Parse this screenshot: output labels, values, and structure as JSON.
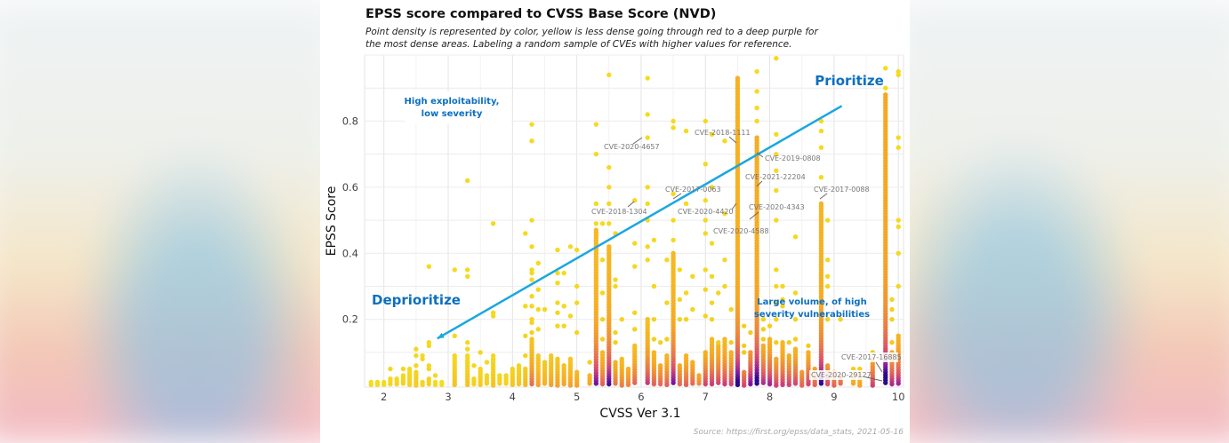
{
  "chart_data": {
    "type": "scatter",
    "title": "EPSS score compared to CVSS Base Score (NVD)",
    "subtitle": [
      "Point density is represented by color, yellow is less dense going through red to a deep purple for",
      "the most dense areas. Labeling a random sample of CVEs with higher values for reference."
    ],
    "xlabel": "CVSS Ver 3.1",
    "ylabel": "EPSS Score",
    "xlim": [
      1.7,
      10.08
    ],
    "ylim": [
      -0.005,
      1.0
    ],
    "x_ticks": [
      2,
      3,
      4,
      5,
      6,
      7,
      8,
      9,
      10
    ],
    "y_ticks": [
      0.2,
      0.4,
      0.6,
      0.8
    ],
    "grid": true,
    "source": "Source: https://first.org/epss/data_stats, 2021-05-16",
    "density_colors": [
      "#f5e51e",
      "#f6a725",
      "#dc4f6a",
      "#8a1aa0",
      "#2b0a8c"
    ],
    "columns": [
      {
        "x": 1.8,
        "stack": 0.01,
        "density": 0.05,
        "points": []
      },
      {
        "x": 1.9,
        "stack": 0.01,
        "density": 0.05,
        "points": []
      },
      {
        "x": 2.0,
        "stack": 0.01,
        "density": 0.05,
        "points": []
      },
      {
        "x": 2.1,
        "stack": 0.02,
        "density": 0.08,
        "points": [
          0.05
        ]
      },
      {
        "x": 2.2,
        "stack": 0.02,
        "density": 0.08,
        "points": []
      },
      {
        "x": 2.3,
        "stack": 0.03,
        "density": 0.1,
        "points": [
          0.05
        ]
      },
      {
        "x": 2.4,
        "stack": 0.05,
        "density": 0.1,
        "points": []
      },
      {
        "x": 2.5,
        "stack": 0.04,
        "density": 0.12,
        "points": [
          0.06,
          0.09,
          0.11
        ]
      },
      {
        "x": 2.6,
        "stack": 0.01,
        "density": 0.08,
        "points": [
          0.08,
          0.09
        ]
      },
      {
        "x": 2.7,
        "stack": 0.02,
        "density": 0.1,
        "points": [
          0.05,
          0.06,
          0.12,
          0.13,
          0.36
        ]
      },
      {
        "x": 2.8,
        "stack": 0.01,
        "density": 0.05,
        "points": [
          0.03
        ]
      },
      {
        "x": 2.9,
        "stack": 0.01,
        "density": 0.05,
        "points": []
      },
      {
        "x": 3.1,
        "stack": 0.09,
        "density": 0.15,
        "points": [
          0.15,
          0.35
        ]
      },
      {
        "x": 3.3,
        "stack": 0.09,
        "density": 0.15,
        "points": [
          0.11,
          0.13,
          0.33,
          0.35,
          0.62
        ]
      },
      {
        "x": 3.4,
        "stack": 0.02,
        "density": 0.1,
        "points": [
          0.06
        ]
      },
      {
        "x": 3.5,
        "stack": 0.05,
        "density": 0.12,
        "points": [
          0.1
        ]
      },
      {
        "x": 3.6,
        "stack": 0.03,
        "density": 0.1,
        "points": [
          0.07
        ]
      },
      {
        "x": 3.7,
        "stack": 0.08,
        "density": 0.15,
        "points": [
          0.09,
          0.21,
          0.22,
          0.49
        ]
      },
      {
        "x": 3.8,
        "stack": 0.03,
        "density": 0.1,
        "points": []
      },
      {
        "x": 3.9,
        "stack": 0.03,
        "density": 0.1,
        "points": []
      },
      {
        "x": 4.0,
        "stack": 0.05,
        "density": 0.15,
        "points": []
      },
      {
        "x": 4.1,
        "stack": 0.06,
        "density": 0.15,
        "points": []
      },
      {
        "x": 4.2,
        "stack": 0.05,
        "density": 0.2,
        "points": [
          0.09,
          0.15,
          0.24,
          0.46
        ]
      },
      {
        "x": 4.3,
        "stack": 0.14,
        "density": 0.45,
        "points": [
          0.16,
          0.19,
          0.2,
          0.24,
          0.27,
          0.32,
          0.34,
          0.35,
          0.42,
          0.5,
          0.74,
          0.79
        ]
      },
      {
        "x": 4.4,
        "stack": 0.09,
        "density": 0.3,
        "points": [
          0.17,
          0.23,
          0.29,
          0.37
        ]
      },
      {
        "x": 4.5,
        "stack": 0.07,
        "density": 0.25,
        "points": [
          0.23
        ]
      },
      {
        "x": 4.6,
        "stack": 0.09,
        "density": 0.3,
        "points": []
      },
      {
        "x": 4.7,
        "stack": 0.08,
        "density": 0.3,
        "points": [
          0.18,
          0.22,
          0.25,
          0.31,
          0.34,
          0.41
        ]
      },
      {
        "x": 4.8,
        "stack": 0.06,
        "density": 0.3,
        "points": [
          0.18,
          0.24,
          0.34
        ]
      },
      {
        "x": 4.9,
        "stack": 0.08,
        "density": 0.3,
        "points": [
          0.21,
          0.42
        ]
      },
      {
        "x": 5.0,
        "stack": 0.04,
        "density": 0.3,
        "points": [
          0.16,
          0.25,
          0.3,
          0.41
        ]
      },
      {
        "x": 5.2,
        "stack": 0.03,
        "density": 0.3,
        "points": [
          0.07
        ]
      },
      {
        "x": 5.3,
        "stack": 0.47,
        "density": 0.7,
        "points": [
          0.49,
          0.55,
          0.7,
          0.79
        ]
      },
      {
        "x": 5.4,
        "stack": 0.1,
        "density": 0.5,
        "points": [
          0.14,
          0.2,
          0.28,
          0.38,
          0.49
        ]
      },
      {
        "x": 5.5,
        "stack": 0.42,
        "density": 0.75,
        "points": [
          0.49,
          0.55,
          0.6,
          0.66,
          0.94
        ]
      },
      {
        "x": 5.6,
        "stack": 0.07,
        "density": 0.45,
        "points": [
          0.13,
          0.16,
          0.3,
          0.32,
          0.46
        ]
      },
      {
        "x": 5.7,
        "stack": 0.08,
        "density": 0.4,
        "points": [
          0.2
        ]
      },
      {
        "x": 5.8,
        "stack": 0.05,
        "density": 0.4,
        "points": []
      },
      {
        "x": 5.9,
        "stack": 0.12,
        "density": 0.5,
        "points": [
          0.17,
          0.22,
          0.36,
          0.43,
          0.56
        ]
      },
      {
        "x": 6.1,
        "stack": 0.2,
        "density": 0.6,
        "points": [
          0.38,
          0.42,
          0.5,
          0.55,
          0.6,
          0.75,
          0.82,
          0.93
        ]
      },
      {
        "x": 6.2,
        "stack": 0.1,
        "density": 0.5,
        "points": [
          0.14,
          0.2,
          0.3,
          0.44
        ]
      },
      {
        "x": 6.3,
        "stack": 0.06,
        "density": 0.5,
        "points": [
          0.13
        ]
      },
      {
        "x": 6.4,
        "stack": 0.09,
        "density": 0.5,
        "points": [
          0.14,
          0.25,
          0.38
        ]
      },
      {
        "x": 6.5,
        "stack": 0.4,
        "density": 0.7,
        "points": [
          0.44,
          0.5,
          0.58,
          0.78,
          0.8
        ]
      },
      {
        "x": 6.6,
        "stack": 0.06,
        "density": 0.5,
        "points": [
          0.2,
          0.26,
          0.35
        ]
      },
      {
        "x": 6.7,
        "stack": 0.09,
        "density": 0.5,
        "points": [
          0.2,
          0.28,
          0.55,
          0.77
        ]
      },
      {
        "x": 6.8,
        "stack": 0.07,
        "density": 0.5,
        "points": [
          0.23,
          0.33
        ]
      },
      {
        "x": 6.9,
        "stack": 0.03,
        "density": 0.4,
        "points": []
      },
      {
        "x": 7.0,
        "stack": 0.1,
        "density": 0.6,
        "points": [
          0.21,
          0.29,
          0.35,
          0.46,
          0.5,
          0.56,
          0.67,
          0.8
        ]
      },
      {
        "x": 7.1,
        "stack": 0.14,
        "density": 0.6,
        "points": [
          0.2,
          0.25,
          0.33,
          0.43,
          0.6,
          0.76
        ]
      },
      {
        "x": 7.2,
        "stack": 0.12,
        "density": 0.6,
        "points": [
          0.13,
          0.28
        ]
      },
      {
        "x": 7.3,
        "stack": 0.14,
        "density": 0.6,
        "points": [
          0.3,
          0.38,
          0.52,
          0.74
        ]
      },
      {
        "x": 7.4,
        "stack": 0.1,
        "density": 0.6,
        "points": [
          0.13,
          0.23
        ]
      },
      {
        "x": 7.5,
        "stack": 0.93,
        "density": 0.85,
        "points": []
      },
      {
        "x": 7.6,
        "stack": 0.04,
        "density": 0.6,
        "points": [
          0.1,
          0.12,
          0.18
        ]
      },
      {
        "x": 7.7,
        "stack": 0.1,
        "density": 0.8,
        "points": [
          0.16
        ]
      },
      {
        "x": 7.8,
        "stack": 0.75,
        "density": 0.9,
        "points": [
          0.8,
          0.84,
          0.89,
          0.95
        ]
      },
      {
        "x": 7.9,
        "stack": 0.12,
        "density": 0.7,
        "points": [
          0.14,
          0.17,
          0.2
        ]
      },
      {
        "x": 8.0,
        "stack": 0.14,
        "density": 0.7,
        "points": [
          0.18
        ]
      },
      {
        "x": 8.1,
        "stack": 0.08,
        "density": 0.6,
        "points": [
          0.13,
          0.2,
          0.25,
          0.3,
          0.35,
          0.5,
          0.59,
          0.65,
          0.7,
          0.76,
          0.99
        ]
      },
      {
        "x": 8.2,
        "stack": 0.13,
        "density": 0.6,
        "points": [
          0.24,
          0.26,
          0.3
        ]
      },
      {
        "x": 8.3,
        "stack": 0.09,
        "density": 0.6,
        "points": [
          0.13
        ]
      },
      {
        "x": 8.4,
        "stack": 0.11,
        "density": 0.6,
        "points": [
          0.14,
          0.2,
          0.28,
          0.45
        ]
      },
      {
        "x": 8.5,
        "stack": 0.04,
        "density": 0.5,
        "points": []
      },
      {
        "x": 8.6,
        "stack": 0.1,
        "density": 0.6,
        "points": [
          0.12
        ]
      },
      {
        "x": 8.7,
        "stack": 0.05,
        "density": 0.5,
        "points": []
      },
      {
        "x": 8.8,
        "stack": 0.55,
        "density": 0.8,
        "points": [
          0.63,
          0.72,
          0.77,
          0.8
        ]
      },
      {
        "x": 8.9,
        "stack": 0.06,
        "density": 0.6,
        "points": [
          0.2,
          0.3,
          0.33,
          0.38,
          0.5
        ]
      },
      {
        "x": 9.0,
        "stack": 0.04,
        "density": 0.5,
        "points": []
      },
      {
        "x": 9.1,
        "stack": 0.03,
        "density": 0.5,
        "points": [
          0.2
        ]
      },
      {
        "x": 9.3,
        "stack": 0.03,
        "density": 0.3,
        "points": [
          0.05
        ]
      },
      {
        "x": 9.4,
        "stack": 0.04,
        "density": 0.3,
        "points": [
          0.05
        ]
      },
      {
        "x": 9.6,
        "stack": 0.08,
        "density": 0.6,
        "points": [
          0.1
        ]
      },
      {
        "x": 9.8,
        "stack": 0.88,
        "density": 1.0,
        "points": [
          0.9,
          0.96
        ]
      },
      {
        "x": 9.9,
        "stack": 0.1,
        "density": 0.7,
        "points": [
          0.13,
          0.2,
          0.23,
          0.26
        ]
      },
      {
        "x": 10.0,
        "stack": 0.15,
        "density": 0.7,
        "points": [
          0.3,
          0.4,
          0.48,
          0.5,
          0.72,
          0.75,
          0.94,
          0.95
        ]
      }
    ],
    "labeled_cves": [
      {
        "label": "CVE-2020-4657",
        "x": 6.1,
        "y": 0.75
      },
      {
        "label": "CVE-2018-1111",
        "x": 7.5,
        "y": 0.735
      },
      {
        "label": "CVE-2019-0808",
        "x": 7.8,
        "y": 0.705
      },
      {
        "label": "CVE-2021-22204",
        "x": 7.8,
        "y": 0.6
      },
      {
        "label": "CVE-2017-0088",
        "x": 8.8,
        "y": 0.563
      },
      {
        "label": "CVE-2017-0063",
        "x": 6.5,
        "y": 0.568
      },
      {
        "label": "CVE-2018-1304",
        "x": 5.9,
        "y": 0.557
      },
      {
        "label": "CVE-2020-4420",
        "x": 7.5,
        "y": 0.552
      },
      {
        "label": "CVE-2020-4343",
        "x": 7.8,
        "y": 0.5
      },
      {
        "label": "CVE-2020-4588",
        "x": 7.6,
        "y": 0.49
      },
      {
        "label": "CVE-2017-16885",
        "x": 9.8,
        "y": 0.04
      },
      {
        "label": "CVE-2020-29127",
        "x": 9.8,
        "y": 0.015
      }
    ],
    "annotations": {
      "prioritize": "Prioritize",
      "deprioritize": "Deprioritize",
      "high_exploitability": [
        "High exploitability,",
        "low severity"
      ],
      "large_volume": [
        "Large volume, of high",
        "severity vulnerabilities"
      ],
      "arrow": {
        "from": [
          9.12,
          0.846
        ],
        "to": [
          2.83,
          0.142
        ],
        "color": "#1aa7e0"
      }
    }
  }
}
